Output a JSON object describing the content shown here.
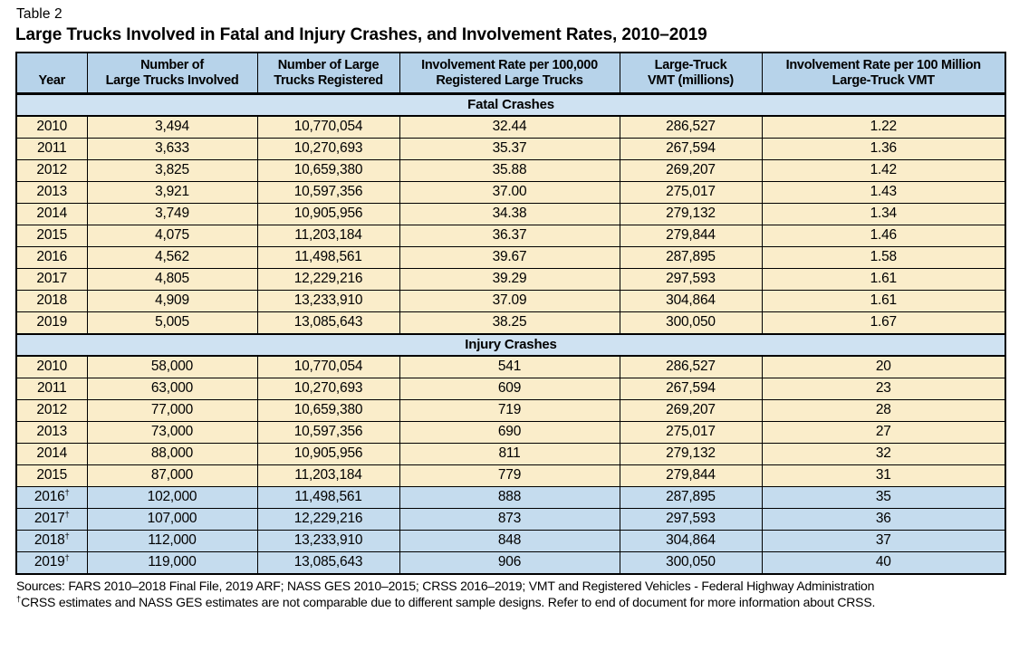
{
  "page": {
    "table_label": "Table 2",
    "title": "Large Trucks Involved in Fatal and Injury Crashes, and Involvement Rates, 2010–2019"
  },
  "colors": {
    "header_blue": "#b7d3ea",
    "band_blue": "#cfe2f2",
    "row_cream": "#faedca",
    "row_blue": "#c5dcee",
    "border": "#000000"
  },
  "table": {
    "columns": [
      {
        "lines": [
          "Year"
        ]
      },
      {
        "lines": [
          "Number of",
          "Large Trucks Involved"
        ]
      },
      {
        "lines": [
          "Number of Large",
          "Trucks Registered"
        ]
      },
      {
        "lines": [
          "Involvement Rate per 100,000",
          "Registered Large Trucks"
        ]
      },
      {
        "lines": [
          "Large-Truck",
          "VMT (millions)"
        ]
      },
      {
        "lines": [
          "Involvement Rate per 100 Million",
          "Large-Truck VMT"
        ]
      }
    ],
    "sections": [
      {
        "label": "Fatal Crashes",
        "rows": [
          {
            "year": "2010",
            "cells": [
              "3,494",
              "10,770,054",
              "32.44",
              "286,527",
              "1.22"
            ],
            "highlight": false
          },
          {
            "year": "2011",
            "cells": [
              "3,633",
              "10,270,693",
              "35.37",
              "267,594",
              "1.36"
            ],
            "highlight": false
          },
          {
            "year": "2012",
            "cells": [
              "3,825",
              "10,659,380",
              "35.88",
              "269,207",
              "1.42"
            ],
            "highlight": false
          },
          {
            "year": "2013",
            "cells": [
              "3,921",
              "10,597,356",
              "37.00",
              "275,017",
              "1.43"
            ],
            "highlight": false
          },
          {
            "year": "2014",
            "cells": [
              "3,749",
              "10,905,956",
              "34.38",
              "279,132",
              "1.34"
            ],
            "highlight": false
          },
          {
            "year": "2015",
            "cells": [
              "4,075",
              "11,203,184",
              "36.37",
              "279,844",
              "1.46"
            ],
            "highlight": false
          },
          {
            "year": "2016",
            "cells": [
              "4,562",
              "11,498,561",
              "39.67",
              "287,895",
              "1.58"
            ],
            "highlight": false
          },
          {
            "year": "2017",
            "cells": [
              "4,805",
              "12,229,216",
              "39.29",
              "297,593",
              "1.61"
            ],
            "highlight": false
          },
          {
            "year": "2018",
            "cells": [
              "4,909",
              "13,233,910",
              "37.09",
              "304,864",
              "1.61"
            ],
            "highlight": false
          },
          {
            "year": "2019",
            "cells": [
              "5,005",
              "13,085,643",
              "38.25",
              "300,050",
              "1.67"
            ],
            "highlight": false
          }
        ]
      },
      {
        "label": "Injury Crashes",
        "rows": [
          {
            "year": "2010",
            "cells": [
              "58,000",
              "10,770,054",
              "541",
              "286,527",
              "20"
            ],
            "highlight": false
          },
          {
            "year": "2011",
            "cells": [
              "63,000",
              "10,270,693",
              "609",
              "267,594",
              "23"
            ],
            "highlight": false
          },
          {
            "year": "2012",
            "cells": [
              "77,000",
              "10,659,380",
              "719",
              "269,207",
              "28"
            ],
            "highlight": false
          },
          {
            "year": "2013",
            "cells": [
              "73,000",
              "10,597,356",
              "690",
              "275,017",
              "27"
            ],
            "highlight": false
          },
          {
            "year": "2014",
            "cells": [
              "88,000",
              "10,905,956",
              "811",
              "279,132",
              "32"
            ],
            "highlight": false
          },
          {
            "year": "2015",
            "cells": [
              "87,000",
              "11,203,184",
              "779",
              "279,844",
              "31"
            ],
            "highlight": false
          },
          {
            "year": "2016†",
            "cells": [
              "102,000",
              "11,498,561",
              "888",
              "287,895",
              "35"
            ],
            "highlight": true
          },
          {
            "year": "2017†",
            "cells": [
              "107,000",
              "12,229,216",
              "873",
              "297,593",
              "36"
            ],
            "highlight": true
          },
          {
            "year": "2018†",
            "cells": [
              "112,000",
              "13,233,910",
              "848",
              "304,864",
              "37"
            ],
            "highlight": true
          },
          {
            "year": "2019†",
            "cells": [
              "119,000",
              "13,085,643",
              "906",
              "300,050",
              "40"
            ],
            "highlight": true
          }
        ]
      }
    ],
    "footnotes": [
      "Sources: FARS 2010–2018 Final File, 2019 ARF; NASS GES 2010–2015; CRSS 2016–2019; VMT and Registered Vehicles - Federal Highway Administration",
      "†CRSS estimates and NASS GES estimates are not comparable due to different sample designs. Refer to end of document for more information about CRSS."
    ]
  }
}
